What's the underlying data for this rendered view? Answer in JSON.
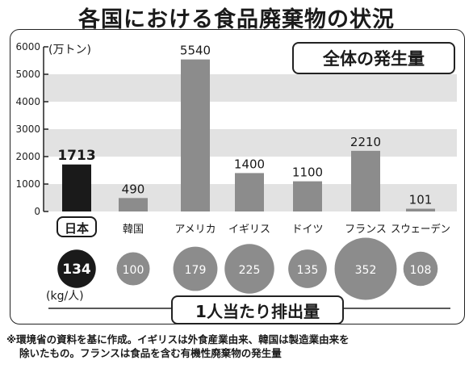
{
  "title": "各国における食品廃棄物の状況",
  "total_label": "全体の発生量",
  "unit_label": "(万トン)",
  "per_capita_label": "1人当たり排出量",
  "per_capita_unit": "(kg/人)",
  "note_line1": "※環境省の資料を基に作成。イギリスは外食産業由来、韓国は製造業由来を",
  "note_line2": "除いたもの。フランスは食品を含む有機性廃棄物の発生量",
  "colors": {
    "bar": "#8c8c8c",
    "highlight": "#1a1a1a",
    "band": "#e2e2e2",
    "bubble": "#8c8c8c"
  },
  "chart_data": [
    {
      "type": "bar",
      "title": "全体の発生量",
      "ylabel": "(万トン)",
      "categories": [
        "日本",
        "韓国",
        "アメリカ",
        "イギリス",
        "ドイツ",
        "フランス",
        "スウェーデン"
      ],
      "values": [
        1713,
        490,
        5540,
        1400,
        1100,
        2210,
        101
      ],
      "value_labels": [
        "1713",
        "490",
        "5540",
        "1400",
        "1100",
        "2210",
        "101"
      ],
      "highlight_index": 0,
      "ylim": [
        0,
        6000
      ],
      "yticks": [
        0,
        1000,
        2000,
        3000,
        4000,
        5000,
        6000
      ],
      "ytick_labels": [
        "0",
        "1000",
        "2000",
        "3000",
        "4000",
        "5000",
        "6000"
      ],
      "grid": "alternating horizontal bands"
    },
    {
      "type": "scatter",
      "title": "1人当たり排出量",
      "unit": "(kg/人)",
      "categories": [
        "日本",
        "韓国",
        "アメリカ",
        "イギリス",
        "ドイツ",
        "フランス",
        "スウェーデン"
      ],
      "values": [
        134,
        100,
        179,
        225,
        135,
        352,
        108
      ],
      "value_labels": [
        "134",
        "100",
        "179",
        "225",
        "135",
        "352",
        "108"
      ],
      "encoding": "bubble area",
      "highlight_index": 0
    }
  ]
}
